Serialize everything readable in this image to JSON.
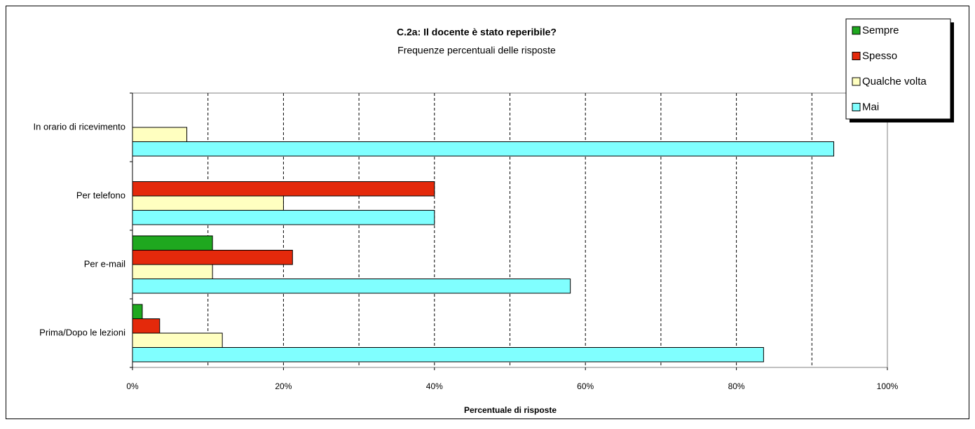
{
  "chart_data": {
    "type": "hbar",
    "title": "C.2a: Il docente è stato reperibile?",
    "subtitle": "Frequenze percentuali delle risposte",
    "x_label": "Percentuale di risposte",
    "categories": [
      "In orario di ricevimento",
      "Per telefono",
      "Per e-mail",
      "Prima/Dopo le lezioni"
    ],
    "series": [
      {
        "name": "Sempre",
        "color": "#1fa81f",
        "values": [
          0,
          0,
          10.6,
          1.3
        ]
      },
      {
        "name": "Spesso",
        "color": "#e4290b",
        "values": [
          0,
          40,
          21.2,
          3.6
        ]
      },
      {
        "name": "Qualche volta",
        "color": "#ffffc0",
        "values": [
          7.2,
          20,
          10.6,
          11.9
        ]
      },
      {
        "name": "Mai",
        "color": "#80ffff",
        "values": [
          92.9,
          40,
          58,
          83.6
        ]
      }
    ],
    "xlim": [
      0,
      100
    ],
    "xticks": [
      {
        "value": 0,
        "label": "0%"
      },
      {
        "value": 20,
        "label": "20%"
      },
      {
        "value": 40,
        "label": "40%"
      },
      {
        "value": 60,
        "label": "60%"
      },
      {
        "value": 80,
        "label": "80%"
      },
      {
        "value": 100,
        "label": "100%"
      }
    ],
    "gridlines": [
      10,
      20,
      30,
      40,
      50,
      60,
      70,
      80,
      90
    ],
    "grid": true,
    "legend": "top-right"
  }
}
